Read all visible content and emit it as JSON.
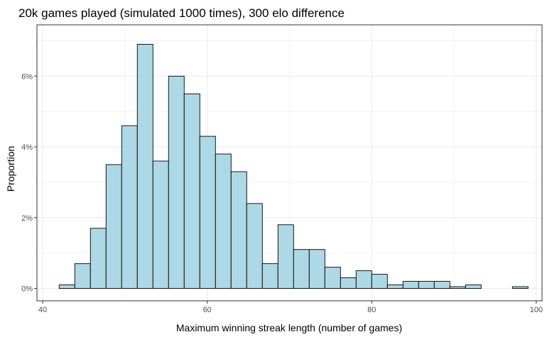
{
  "chart_data": {
    "type": "bar",
    "title": "20k games played (simulated 1000 times), 300 elo difference",
    "xlabel": "Maximum winning streak length (number of games)",
    "ylabel": "Proportion",
    "xlim": [
      39.3,
      100.7
    ],
    "ylim": [
      -0.35,
      7.45
    ],
    "x_ticks": [
      40,
      60,
      80,
      100
    ],
    "x_tick_labels": [
      "40",
      "60",
      "80",
      "100"
    ],
    "y_ticks": [
      0,
      2,
      4,
      6
    ],
    "y_tick_labels": [
      "0%",
      "2%",
      "4%",
      "6%"
    ],
    "grid": true,
    "bin_width": 1.9,
    "bins": [
      {
        "x0": 42.0,
        "value": 0.1
      },
      {
        "x0": 43.9,
        "value": 0.7
      },
      {
        "x0": 45.8,
        "value": 1.7
      },
      {
        "x0": 47.7,
        "value": 3.5
      },
      {
        "x0": 49.6,
        "value": 4.6
      },
      {
        "x0": 51.5,
        "value": 6.9
      },
      {
        "x0": 53.4,
        "value": 3.6
      },
      {
        "x0": 55.3,
        "value": 6.0
      },
      {
        "x0": 57.2,
        "value": 5.5
      },
      {
        "x0": 59.1,
        "value": 4.3
      },
      {
        "x0": 61.0,
        "value": 3.8
      },
      {
        "x0": 62.9,
        "value": 3.3
      },
      {
        "x0": 64.8,
        "value": 2.4
      },
      {
        "x0": 66.7,
        "value": 0.7
      },
      {
        "x0": 68.6,
        "value": 1.8
      },
      {
        "x0": 70.5,
        "value": 1.1
      },
      {
        "x0": 72.4,
        "value": 1.1
      },
      {
        "x0": 74.3,
        "value": 0.6
      },
      {
        "x0": 76.2,
        "value": 0.3
      },
      {
        "x0": 78.1,
        "value": 0.5
      },
      {
        "x0": 80.0,
        "value": 0.4
      },
      {
        "x0": 81.9,
        "value": 0.1
      },
      {
        "x0": 83.8,
        "value": 0.2
      },
      {
        "x0": 85.7,
        "value": 0.2
      },
      {
        "x0": 87.6,
        "value": 0.2
      },
      {
        "x0": 89.5,
        "value": 0.05
      },
      {
        "x0": 91.4,
        "value": 0.1
      },
      {
        "x0": 93.3,
        "value": 0.0
      },
      {
        "x0": 95.2,
        "value": 0.0
      },
      {
        "x0": 97.1,
        "value": 0.05
      }
    ],
    "colors": {
      "bar_fill": "#add8e6",
      "bar_stroke": "#000000",
      "grid": "#ebebeb",
      "panel_border": "#333333",
      "tick_text": "#4d4d4d"
    }
  }
}
